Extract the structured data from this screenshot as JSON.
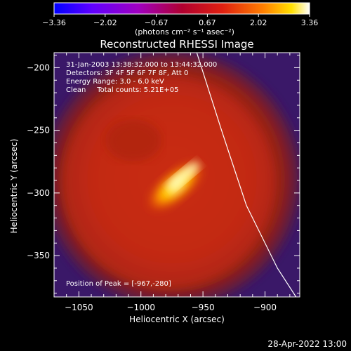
{
  "colorbar": {
    "ticks": [
      "−3.36",
      "−2.02",
      "−0.67",
      "0.67",
      "2.02",
      "3.36"
    ],
    "units_label": "(photons cm⁻² s⁻¹ asec⁻²)",
    "colors": [
      "#0000ff",
      "#7f00ff",
      "#a000c8",
      "#b00040",
      "#e02010",
      "#ff8000",
      "#ffe000",
      "#ffffff"
    ]
  },
  "chart_data": {
    "type": "heatmap",
    "title": "Reconstructed RHESSI Image",
    "xlabel": "Heliocentric X (arcsec)",
    "ylabel": "Heliocentric Y (arcsec)",
    "xlim": [
      -1070,
      -872
    ],
    "ylim": [
      -383,
      -188
    ],
    "xticks": [
      -1050,
      -1000,
      -950,
      -900
    ],
    "yticks": [
      -200,
      -250,
      -300,
      -350
    ],
    "xtick_labels": [
      "−1050",
      "−1000",
      "−950",
      "−900"
    ],
    "ytick_labels": [
      "−200",
      "−250",
      "−300",
      "−350"
    ],
    "annotations": [
      "31-Jan-2003 13:38:32.000 to 13:44:32.000",
      "Detectors: 3F 4F 5F 6F 7F 8F, Att 0",
      "Energy Range: 3.0 - 6.0 keV",
      "Clean     Total counts: 5.21E+05"
    ],
    "peak_label": "Position of Peak = [-967,-280]",
    "peak": [
      -967,
      -280
    ],
    "limb_curve": {
      "x": [
        -955,
        -935,
        -915,
        -890,
        -875
      ],
      "y": [
        -188,
        -250,
        -310,
        -360,
        -383
      ]
    }
  },
  "footer": {
    "timestamp": "28-Apr-2022 13:00"
  }
}
